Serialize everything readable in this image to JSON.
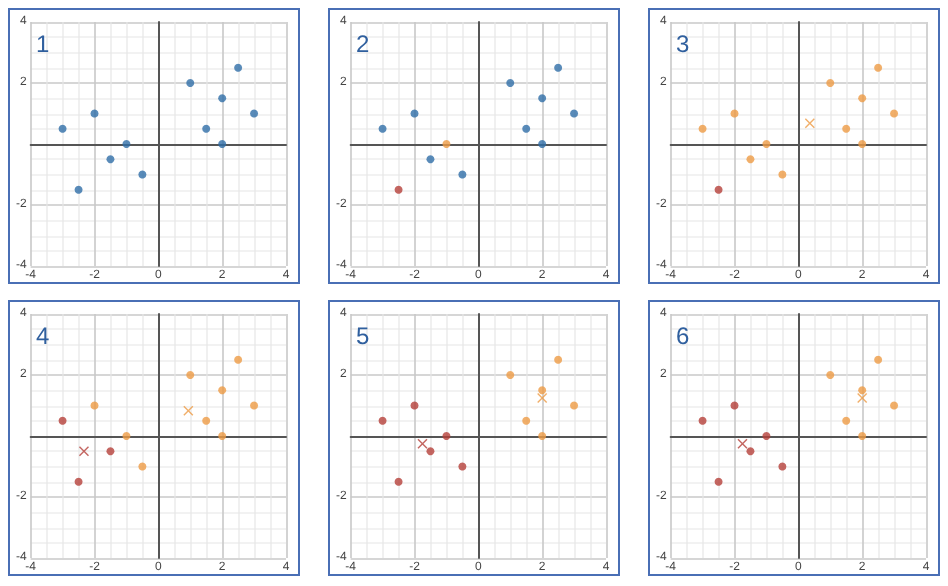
{
  "chart_data": [
    {
      "type": "scatter",
      "title": "1",
      "xlim": [
        -4,
        4
      ],
      "ylim": [
        -4,
        4
      ],
      "xticks": [
        -4,
        -2,
        0,
        2,
        4
      ],
      "yticks": [
        -4,
        -2,
        2,
        4
      ],
      "grid": true,
      "series": [
        {
          "color": "#2f6ea8",
          "marker": "circle",
          "x": [
            -3,
            -2,
            -2.5,
            -1.5,
            -1,
            -0.5,
            1,
            1.5,
            2,
            2,
            2.5,
            3
          ],
          "values": [
            0.5,
            1,
            -1.5,
            -0.5,
            0,
            -1,
            2,
            0.5,
            1.5,
            0,
            2.5,
            1
          ]
        }
      ]
    },
    {
      "type": "scatter",
      "title": "2",
      "xlim": [
        -4,
        4
      ],
      "ylim": [
        -4,
        4
      ],
      "xticks": [
        -4,
        -2,
        0,
        2,
        4
      ],
      "yticks": [
        -4,
        -2,
        2,
        4
      ],
      "grid": true,
      "series": [
        {
          "color": "#2f6ea8",
          "marker": "circle",
          "x": [
            -3,
            -2,
            -1.5,
            -0.5,
            1,
            1.5,
            2,
            2,
            2.5,
            3
          ],
          "values": [
            0.5,
            1,
            -0.5,
            -1,
            2,
            0.5,
            1.5,
            0,
            2.5,
            1
          ]
        },
        {
          "color": "#b5403a",
          "marker": "circle",
          "x": [
            -2.5
          ],
          "values": [
            -1.5
          ]
        },
        {
          "color": "#ed9b45",
          "marker": "circle",
          "x": [
            -1
          ],
          "values": [
            0
          ]
        }
      ]
    },
    {
      "type": "scatter",
      "title": "3",
      "xlim": [
        -4,
        4
      ],
      "ylim": [
        -4,
        4
      ],
      "xticks": [
        -4,
        -2,
        0,
        2,
        4
      ],
      "yticks": [
        -4,
        -2,
        2,
        4
      ],
      "grid": true,
      "series": [
        {
          "color": "#ed9b45",
          "marker": "circle",
          "x": [
            -3,
            -2,
            -1.5,
            -1,
            -0.5,
            1,
            1.5,
            2,
            2,
            2.5,
            3
          ],
          "values": [
            0.5,
            1,
            -0.5,
            0,
            -1,
            2,
            0.5,
            1.5,
            0,
            2.5,
            1
          ]
        },
        {
          "color": "#b5403a",
          "marker": "circle",
          "x": [
            -2.5
          ],
          "values": [
            -1.5
          ]
        },
        {
          "color": "#ed9b45",
          "marker": "cross",
          "x": [
            0.36
          ],
          "values": [
            0.68
          ]
        }
      ]
    },
    {
      "type": "scatter",
      "title": "4",
      "xlim": [
        -4,
        4
      ],
      "ylim": [
        -4,
        4
      ],
      "xticks": [
        -4,
        -2,
        0,
        2,
        4
      ],
      "yticks": [
        -4,
        -2,
        2,
        4
      ],
      "grid": true,
      "series": [
        {
          "color": "#b5403a",
          "marker": "circle",
          "x": [
            -3,
            -2.5,
            -1.5
          ],
          "values": [
            0.5,
            -1.5,
            -0.5
          ]
        },
        {
          "color": "#ed9b45",
          "marker": "circle",
          "x": [
            -2,
            -1,
            -0.5,
            1,
            1.5,
            2,
            2,
            2.5,
            3
          ],
          "values": [
            1,
            0,
            -1,
            2,
            0.5,
            1.5,
            0,
            2.5,
            1
          ]
        },
        {
          "color": "#b5403a",
          "marker": "cross",
          "x": [
            -2.33
          ],
          "values": [
            -0.5
          ]
        },
        {
          "color": "#ed9b45",
          "marker": "cross",
          "x": [
            0.94
          ],
          "values": [
            0.83
          ]
        }
      ]
    },
    {
      "type": "scatter",
      "title": "5",
      "xlim": [
        -4,
        4
      ],
      "ylim": [
        -4,
        4
      ],
      "xticks": [
        -4,
        -2,
        0,
        2,
        4
      ],
      "yticks": [
        -4,
        -2,
        2,
        4
      ],
      "grid": true,
      "series": [
        {
          "color": "#b5403a",
          "marker": "circle",
          "x": [
            -3,
            -2,
            -2.5,
            -1.5,
            -1,
            -0.5
          ],
          "values": [
            0.5,
            1,
            -1.5,
            -0.5,
            0,
            -1
          ]
        },
        {
          "color": "#ed9b45",
          "marker": "circle",
          "x": [
            1,
            1.5,
            2,
            2,
            2.5,
            3
          ],
          "values": [
            2,
            0.5,
            1.5,
            0,
            2.5,
            1
          ]
        },
        {
          "color": "#b5403a",
          "marker": "cross",
          "x": [
            -1.75
          ],
          "values": [
            -0.25
          ]
        },
        {
          "color": "#ed9b45",
          "marker": "cross",
          "x": [
            2
          ],
          "values": [
            1.25
          ]
        }
      ]
    },
    {
      "type": "scatter",
      "title": "6",
      "xlim": [
        -4,
        4
      ],
      "ylim": [
        -4,
        4
      ],
      "xticks": [
        -4,
        -2,
        0,
        2,
        4
      ],
      "yticks": [
        -4,
        -2,
        2,
        4
      ],
      "grid": true,
      "series": [
        {
          "color": "#b5403a",
          "marker": "circle",
          "x": [
            -3,
            -2,
            -2.5,
            -1.5,
            -1,
            -0.5
          ],
          "values": [
            0.5,
            1,
            -1.5,
            -0.5,
            0,
            -1
          ]
        },
        {
          "color": "#ed9b45",
          "marker": "circle",
          "x": [
            1,
            1.5,
            2,
            2,
            2.5,
            3
          ],
          "values": [
            2,
            0.5,
            1.5,
            0,
            2.5,
            1
          ]
        },
        {
          "color": "#b5403a",
          "marker": "cross",
          "x": [
            -1.75
          ],
          "values": [
            -0.25
          ]
        },
        {
          "color": "#ed9b45",
          "marker": "cross",
          "x": [
            2
          ],
          "values": [
            1.25
          ]
        }
      ]
    }
  ]
}
